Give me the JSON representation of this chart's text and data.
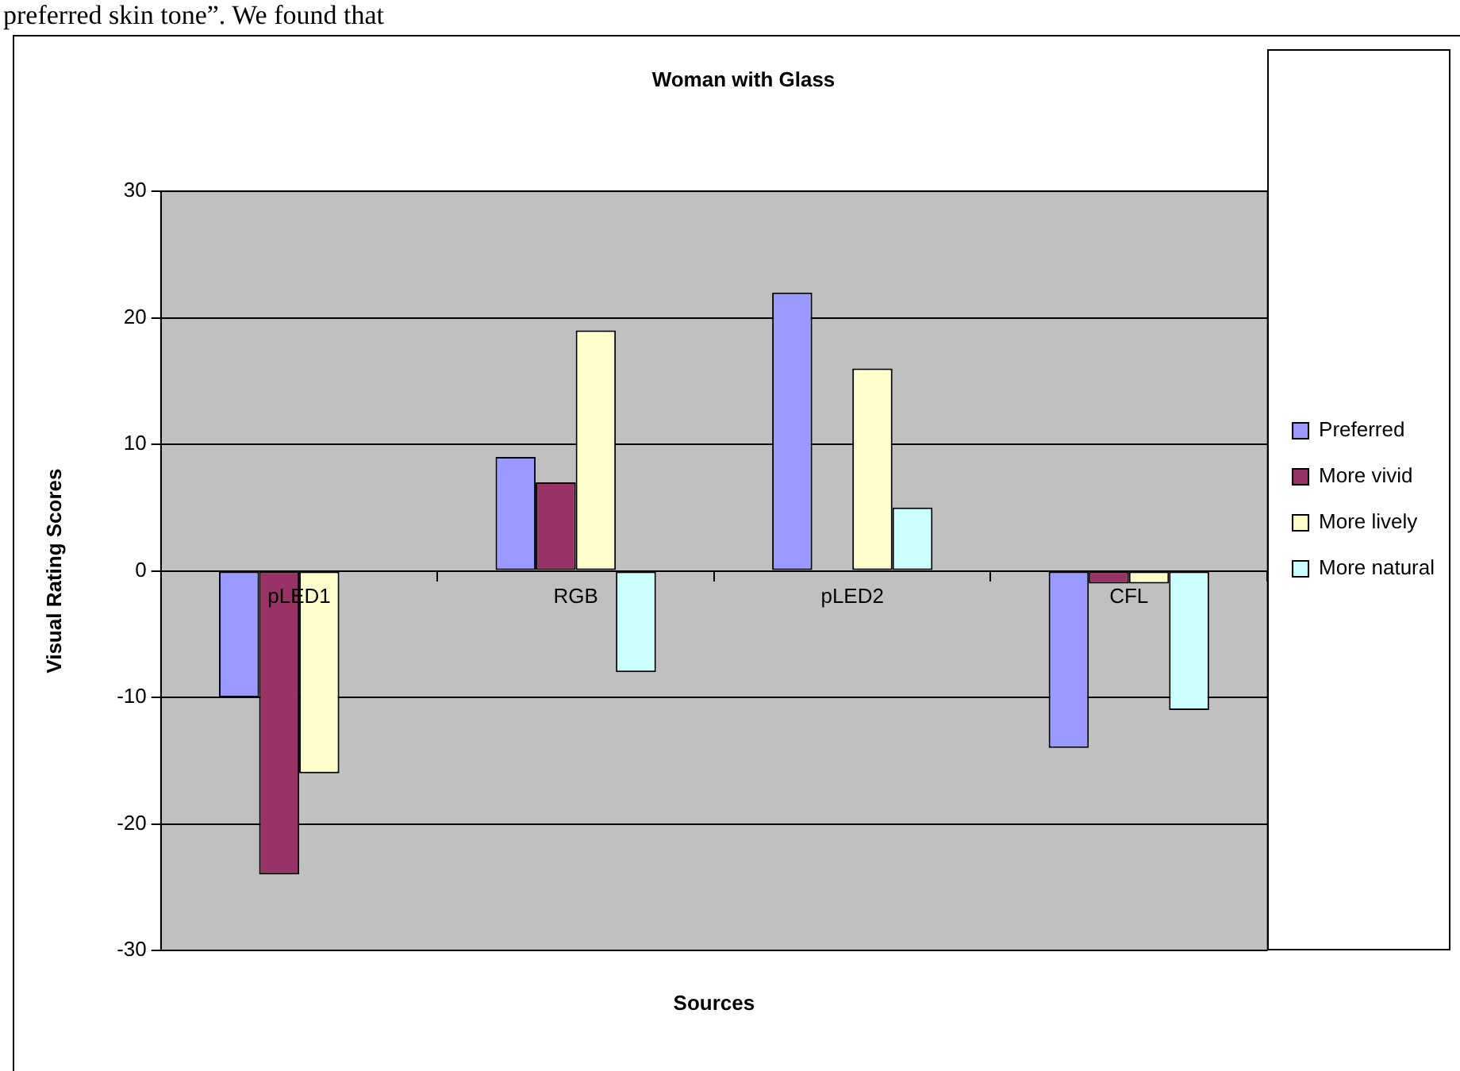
{
  "chart_data": {
    "type": "bar",
    "title": "Woman with Glass",
    "xlabel": "Sources",
    "ylabel": "Visual Rating Scores",
    "annotations": [
      "preferred skin tone”. We found that"
    ],
    "categories": [
      "pLED1",
      "RGB",
      "pLED2",
      "CFL"
    ],
    "series": [
      {
        "name": "Preferred",
        "color": "#9999ff",
        "values": [
          -10,
          9,
          22,
          -14
        ]
      },
      {
        "name": "More vivid",
        "color": "#993366",
        "values": [
          -24,
          7,
          0,
          -1
        ]
      },
      {
        "name": "More lively",
        "color": "#ffffcc",
        "values": [
          -16,
          19,
          16,
          -1
        ]
      },
      {
        "name": "More natural",
        "color": "#ccffff",
        "values": [
          0,
          -8,
          5,
          -11
        ]
      }
    ],
    "ylim": [
      -30,
      30
    ],
    "yticks": [
      -30,
      -20,
      -10,
      0,
      10,
      20,
      30
    ],
    "grid": "y",
    "legend": "right"
  }
}
